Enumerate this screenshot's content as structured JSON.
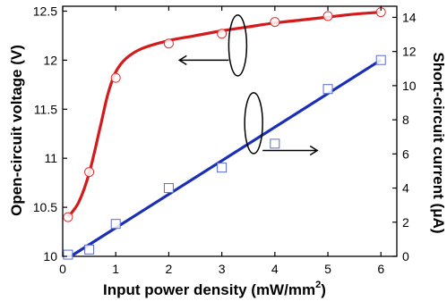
{
  "chart_data": {
    "type": "scatter",
    "xlabel": "Input power density (mW/mm",
    "xlabel_superscript": "2",
    "xlabel_close": ")",
    "ylabel_left": "Open-circuit voltage (V)",
    "ylabel_right": "Short-circuit current (μA)",
    "xlim": [
      0,
      6.3
    ],
    "ylim_left": [
      10,
      12.55
    ],
    "ylim_right": [
      0,
      14.65
    ],
    "x_ticks": [
      "0",
      "1",
      "2",
      "3",
      "4",
      "5",
      "6"
    ],
    "y_left_ticks": [
      "10",
      "10.5",
      "11",
      "11.5",
      "12",
      "12.5"
    ],
    "y_right_ticks": [
      "0",
      "2",
      "4",
      "6",
      "8",
      "10",
      "12",
      "14"
    ],
    "grid": false,
    "series": [
      {
        "axis": "left",
        "marker": "circle",
        "line_style": "smooth-fit",
        "x": [
          0.1,
          0.5,
          1,
          2,
          3,
          4,
          5,
          6
        ],
        "values": [
          10.4,
          10.86,
          11.82,
          12.17,
          12.27,
          12.39,
          12.45,
          12.49
        ],
        "fit_x": [
          0.1,
          0.3,
          0.5,
          0.7,
          0.85,
          1.0,
          1.2,
          1.5,
          2.0,
          2.5,
          3.0,
          3.5,
          4.0,
          4.5,
          5.0,
          5.5,
          6.0
        ],
        "fit_values": [
          10.4,
          10.55,
          10.85,
          11.3,
          11.65,
          11.88,
          12.02,
          12.12,
          12.2,
          12.25,
          12.3,
          12.34,
          12.38,
          12.41,
          12.44,
          12.47,
          12.49
        ]
      },
      {
        "axis": "right",
        "marker": "square",
        "line_style": "linear-fit",
        "x": [
          0.1,
          0.5,
          1,
          2,
          3,
          4,
          5,
          6
        ],
        "values": [
          0.1,
          0.4,
          1.9,
          4.0,
          5.2,
          6.6,
          9.8,
          11.5
        ],
        "fit_x": [
          0.15,
          6.0
        ],
        "fit_values": [
          0.0,
          11.5
        ]
      }
    ],
    "colors": {
      "left_line": "#d41a1a",
      "left_marker": "#e03030",
      "right_line": "#1a2fb8",
      "right_marker": "#5a6ad8"
    }
  }
}
